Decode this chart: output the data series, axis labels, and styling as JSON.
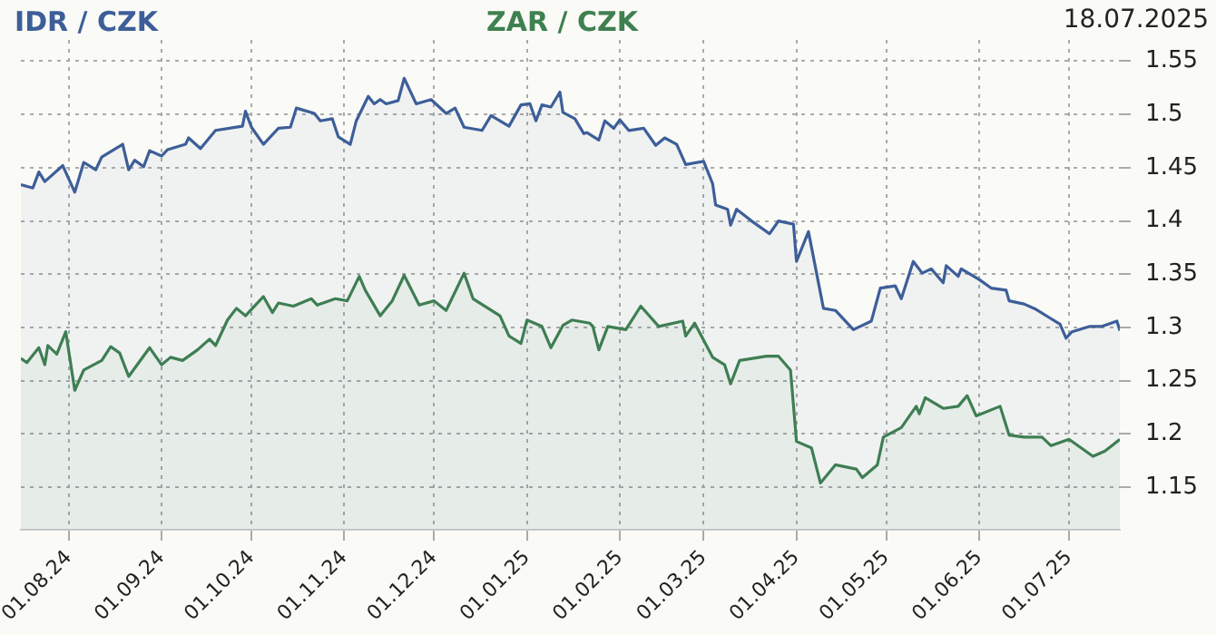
{
  "chart_data": {
    "type": "area",
    "annotations": [
      "18.07.2025"
    ],
    "legend": false,
    "grid": true,
    "xlim": [
      "2024-07-16",
      "2025-07-18"
    ],
    "xticks": [
      {
        "value": "2024-08-01",
        "label": "01.08.24"
      },
      {
        "value": "2024-09-01",
        "label": "01.09.24"
      },
      {
        "value": "2024-10-01",
        "label": "01.10.24"
      },
      {
        "value": "2024-11-01",
        "label": "01.11.24"
      },
      {
        "value": "2024-12-01",
        "label": "01.12.24"
      },
      {
        "value": "2025-01-01",
        "label": "01.01.25"
      },
      {
        "value": "2025-02-01",
        "label": "01.02.25"
      },
      {
        "value": "2025-03-01",
        "label": "01.03.25"
      },
      {
        "value": "2025-04-01",
        "label": "01.04.25"
      },
      {
        "value": "2025-05-01",
        "label": "01.05.25"
      },
      {
        "value": "2025-06-01",
        "label": "01.06.25"
      },
      {
        "value": "2025-07-01",
        "label": "01.07.25"
      }
    ],
    "ylim": [
      1.11,
      1.57
    ],
    "yticks": [
      1.15,
      1.2,
      1.25,
      1.3,
      1.35,
      1.4,
      1.45,
      1.5,
      1.55
    ],
    "series": [
      {
        "name": "IDR / CZK",
        "color": "#3d5e99",
        "x": [
          "2024-07-16",
          "2024-07-20",
          "2024-07-22",
          "2024-07-24",
          "2024-07-30",
          "2024-08-03",
          "2024-08-06",
          "2024-08-10",
          "2024-08-12",
          "2024-08-19",
          "2024-08-21",
          "2024-08-23",
          "2024-08-26",
          "2024-08-28",
          "2024-09-01",
          "2024-09-03",
          "2024-09-09",
          "2024-09-10",
          "2024-09-14",
          "2024-09-19",
          "2024-09-28",
          "2024-09-29",
          "2024-10-01",
          "2024-10-05",
          "2024-10-10",
          "2024-10-14",
          "2024-10-16",
          "2024-10-22",
          "2024-10-24",
          "2024-10-28",
          "2024-10-30",
          "2024-11-03",
          "2024-11-05",
          "2024-11-09",
          "2024-11-11",
          "2024-11-13",
          "2024-11-15",
          "2024-11-19",
          "2024-11-21",
          "2024-11-25",
          "2024-11-30",
          "2024-12-05",
          "2024-12-08",
          "2024-12-11",
          "2024-12-17",
          "2024-12-20",
          "2024-12-26",
          "2024-12-30",
          "2025-01-02",
          "2025-01-04",
          "2025-01-06",
          "2025-01-09",
          "2025-01-12",
          "2025-01-13",
          "2025-01-17",
          "2025-01-20",
          "2025-01-21",
          "2025-01-25",
          "2025-01-27",
          "2025-01-30",
          "2025-02-01",
          "2025-02-04",
          "2025-02-09",
          "2025-02-13",
          "2025-02-16",
          "2025-02-20",
          "2025-02-23",
          "2025-03-01",
          "2025-03-04",
          "2025-03-05",
          "2025-03-09",
          "2025-03-10",
          "2025-03-12",
          "2025-03-17",
          "2025-03-23",
          "2025-03-26",
          "2025-03-31",
          "2025-04-01",
          "2025-04-05",
          "2025-04-10",
          "2025-04-14",
          "2025-04-20",
          "2025-04-26",
          "2025-04-29",
          "2025-05-04",
          "2025-05-06",
          "2025-05-10",
          "2025-05-13",
          "2025-05-16",
          "2025-05-20",
          "2025-05-21",
          "2025-05-25",
          "2025-05-26",
          "2025-06-01",
          "2025-06-05",
          "2025-06-10",
          "2025-06-11",
          "2025-06-16",
          "2025-06-20",
          "2025-06-24",
          "2025-06-28",
          "2025-06-30",
          "2025-07-02",
          "2025-07-08",
          "2025-07-12",
          "2025-07-17",
          "2025-07-18"
        ],
        "values": [
          1.434,
          1.431,
          1.446,
          1.437,
          1.452,
          1.427,
          1.455,
          1.448,
          1.46,
          1.472,
          1.448,
          1.457,
          1.451,
          1.466,
          1.461,
          1.467,
          1.472,
          1.478,
          1.468,
          1.485,
          1.489,
          1.503,
          1.488,
          1.472,
          1.487,
          1.488,
          1.506,
          1.501,
          1.494,
          1.496,
          1.479,
          1.472,
          1.494,
          1.517,
          1.51,
          1.514,
          1.51,
          1.513,
          1.534,
          1.51,
          1.514,
          1.501,
          1.506,
          1.488,
          1.485,
          1.499,
          1.489,
          1.509,
          1.51,
          1.494,
          1.509,
          1.507,
          1.521,
          1.502,
          1.496,
          1.482,
          1.483,
          1.476,
          1.494,
          1.487,
          1.495,
          1.485,
          1.487,
          1.471,
          1.478,
          1.472,
          1.453,
          1.456,
          1.435,
          1.415,
          1.411,
          1.396,
          1.411,
          1.4,
          1.388,
          1.4,
          1.397,
          1.362,
          1.39,
          1.318,
          1.316,
          1.298,
          1.306,
          1.337,
          1.339,
          1.327,
          1.362,
          1.351,
          1.355,
          1.342,
          1.358,
          1.348,
          1.355,
          1.345,
          1.337,
          1.335,
          1.325,
          1.322,
          1.317,
          1.31,
          1.303,
          1.29,
          1.296,
          1.301,
          1.301,
          1.306,
          1.297
        ]
      },
      {
        "name": "ZAR / CZK",
        "color": "#3f8050",
        "x": [
          "2024-07-16",
          "2024-07-18",
          "2024-07-22",
          "2024-07-24",
          "2024-07-25",
          "2024-07-28",
          "2024-07-31",
          "2024-08-03",
          "2024-08-06",
          "2024-08-12",
          "2024-08-15",
          "2024-08-18",
          "2024-08-21",
          "2024-08-28",
          "2024-09-01",
          "2024-09-04",
          "2024-09-08",
          "2024-09-13",
          "2024-09-17",
          "2024-09-19",
          "2024-09-23",
          "2024-09-26",
          "2024-09-29",
          "2024-10-05",
          "2024-10-08",
          "2024-10-10",
          "2024-10-15",
          "2024-10-21",
          "2024-10-23",
          "2024-10-29",
          "2024-11-02",
          "2024-11-06",
          "2024-11-08",
          "2024-11-13",
          "2024-11-17",
          "2024-11-21",
          "2024-11-26",
          "2024-12-01",
          "2024-12-05",
          "2024-12-11",
          "2024-12-14",
          "2024-12-23",
          "2024-12-26",
          "2024-12-30",
          "2025-01-01",
          "2025-01-06",
          "2025-01-09",
          "2025-01-13",
          "2025-01-16",
          "2025-01-22",
          "2025-01-23",
          "2025-01-25",
          "2025-01-28",
          "2025-02-03",
          "2025-02-08",
          "2025-02-14",
          "2025-02-22",
          "2025-02-23",
          "2025-02-26",
          "2025-03-04",
          "2025-03-08",
          "2025-03-10",
          "2025-03-13",
          "2025-03-22",
          "2025-03-26",
          "2025-03-30",
          "2025-04-01",
          "2025-04-06",
          "2025-04-09",
          "2025-04-14",
          "2025-04-21",
          "2025-04-23",
          "2025-04-28",
          "2025-04-30",
          "2025-05-06",
          "2025-05-11",
          "2025-05-12",
          "2025-05-14",
          "2025-05-20",
          "2025-05-25",
          "2025-05-28",
          "2025-05-31",
          "2025-06-08",
          "2025-06-11",
          "2025-06-16",
          "2025-06-22",
          "2025-06-25",
          "2025-07-01",
          "2025-07-09",
          "2025-07-13",
          "2025-07-18"
        ],
        "values": [
          1.271,
          1.267,
          1.281,
          1.265,
          1.283,
          1.275,
          1.296,
          1.241,
          1.26,
          1.269,
          1.282,
          1.276,
          1.254,
          1.281,
          1.265,
          1.272,
          1.269,
          1.279,
          1.289,
          1.283,
          1.307,
          1.318,
          1.311,
          1.329,
          1.314,
          1.323,
          1.32,
          1.327,
          1.321,
          1.327,
          1.325,
          1.348,
          1.335,
          1.311,
          1.325,
          1.349,
          1.321,
          1.325,
          1.316,
          1.351,
          1.327,
          1.311,
          1.292,
          1.285,
          1.307,
          1.301,
          1.281,
          1.302,
          1.307,
          1.304,
          1.301,
          1.279,
          1.301,
          1.298,
          1.32,
          1.301,
          1.306,
          1.292,
          1.304,
          1.272,
          1.265,
          1.247,
          1.269,
          1.273,
          1.273,
          1.26,
          1.193,
          1.187,
          1.154,
          1.171,
          1.167,
          1.159,
          1.171,
          1.197,
          1.206,
          1.226,
          1.219,
          1.234,
          1.224,
          1.226,
          1.236,
          1.217,
          1.226,
          1.199,
          1.197,
          1.197,
          1.189,
          1.195,
          1.179,
          1.184,
          1.195
        ]
      }
    ]
  }
}
